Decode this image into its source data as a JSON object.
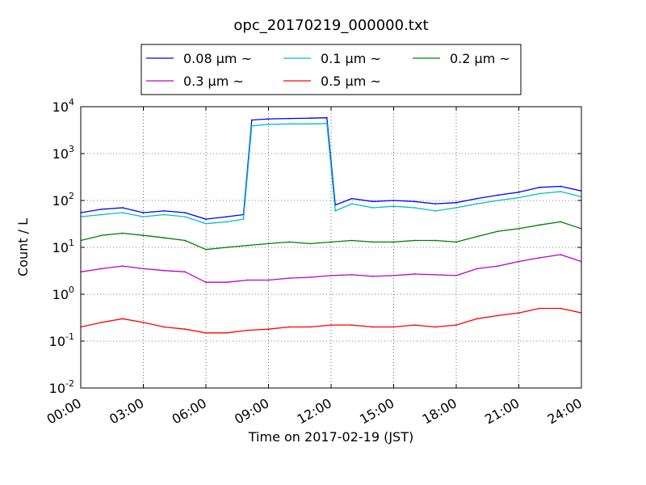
{
  "chart_data": {
    "type": "line",
    "title": "opc_20170219_000000.txt",
    "xlabel": "Time on 2017-02-19 (JST)",
    "ylabel": "Count / L",
    "x_unit": "hours",
    "xlim": [
      0,
      24
    ],
    "ylim": [
      0.01,
      10000
    ],
    "yscale": "log",
    "grid": true,
    "legend": {
      "placement": "top-center",
      "ncol": 3
    },
    "x_ticks": [
      {
        "v": 0,
        "label": "00:00"
      },
      {
        "v": 3,
        "label": "03:00"
      },
      {
        "v": 6,
        "label": "06:00"
      },
      {
        "v": 9,
        "label": "09:00"
      },
      {
        "v": 12,
        "label": "12:00"
      },
      {
        "v": 15,
        "label": "15:00"
      },
      {
        "v": 18,
        "label": "18:00"
      },
      {
        "v": 21,
        "label": "21:00"
      },
      {
        "v": 24,
        "label": "24:00"
      }
    ],
    "y_ticks": [
      {
        "v": 0.01,
        "base": "10",
        "exp": "-2"
      },
      {
        "v": 0.1,
        "base": "10",
        "exp": "-1"
      },
      {
        "v": 1,
        "base": "10",
        "exp": "0"
      },
      {
        "v": 10,
        "base": "10",
        "exp": "1"
      },
      {
        "v": 100,
        "base": "10",
        "exp": "2"
      },
      {
        "v": 1000,
        "base": "10",
        "exp": "3"
      },
      {
        "v": 10000,
        "base": "10",
        "exp": "4"
      }
    ],
    "series": [
      {
        "name": "0.08 μm ~",
        "color": "#0000ff",
        "x": [
          0,
          1,
          2,
          3,
          4,
          5,
          6,
          7,
          7.8,
          8.2,
          9,
          10,
          11,
          11.8,
          12.2,
          13,
          14,
          15,
          16,
          17,
          18,
          19,
          20,
          21,
          22,
          23,
          24
        ],
        "y": [
          55,
          65,
          70,
          55,
          60,
          55,
          40,
          45,
          50,
          5200,
          5500,
          5600,
          5700,
          5800,
          80,
          110,
          95,
          100,
          95,
          85,
          90,
          110,
          130,
          150,
          190,
          200,
          160
        ]
      },
      {
        "name": "0.1 μm ~",
        "color": "#00bfbf",
        "x": [
          0,
          1,
          2,
          3,
          4,
          5,
          6,
          7,
          7.8,
          8.2,
          9,
          10,
          11,
          11.8,
          12.2,
          13,
          14,
          15,
          16,
          17,
          18,
          19,
          20,
          21,
          22,
          23,
          24
        ],
        "y": [
          45,
          50,
          55,
          45,
          50,
          45,
          32,
          35,
          40,
          3900,
          4200,
          4300,
          4300,
          4400,
          60,
          85,
          70,
          75,
          70,
          60,
          70,
          85,
          100,
          115,
          140,
          155,
          120
        ]
      },
      {
        "name": "0.2 μm ~",
        "color": "#007f00",
        "x": [
          0,
          1,
          2,
          3,
          4,
          5,
          6,
          7,
          8,
          9,
          10,
          11,
          12,
          13,
          14,
          15,
          16,
          17,
          18,
          19,
          20,
          21,
          22,
          23,
          24
        ],
        "y": [
          14,
          18,
          20,
          18,
          16,
          14,
          9,
          10,
          11,
          12,
          13,
          12,
          13,
          14,
          13,
          13,
          14,
          14,
          13,
          17,
          22,
          25,
          30,
          35,
          25
        ]
      },
      {
        "name": "0.3 μm ~",
        "color": "#bf00bf",
        "x": [
          0,
          1,
          2,
          3,
          4,
          5,
          6,
          7,
          8,
          9,
          10,
          11,
          12,
          13,
          14,
          15,
          16,
          17,
          18,
          19,
          20,
          21,
          22,
          23,
          24
        ],
        "y": [
          3,
          3.5,
          4,
          3.5,
          3.2,
          3,
          1.8,
          1.8,
          2,
          2,
          2.2,
          2.3,
          2.5,
          2.6,
          2.4,
          2.5,
          2.7,
          2.6,
          2.5,
          3.5,
          4,
          5,
          6,
          7,
          5
        ]
      },
      {
        "name": "0.5 μm ~",
        "color": "#ff0000",
        "x": [
          0,
          1,
          2,
          3,
          4,
          5,
          6,
          7,
          8,
          9,
          10,
          11,
          12,
          13,
          14,
          15,
          16,
          17,
          18,
          19,
          20,
          21,
          22,
          23,
          24
        ],
        "y": [
          0.2,
          0.25,
          0.3,
          0.25,
          0.2,
          0.18,
          0.15,
          0.15,
          0.17,
          0.18,
          0.2,
          0.2,
          0.22,
          0.22,
          0.2,
          0.2,
          0.22,
          0.2,
          0.22,
          0.3,
          0.35,
          0.4,
          0.5,
          0.5,
          0.4
        ]
      }
    ]
  }
}
